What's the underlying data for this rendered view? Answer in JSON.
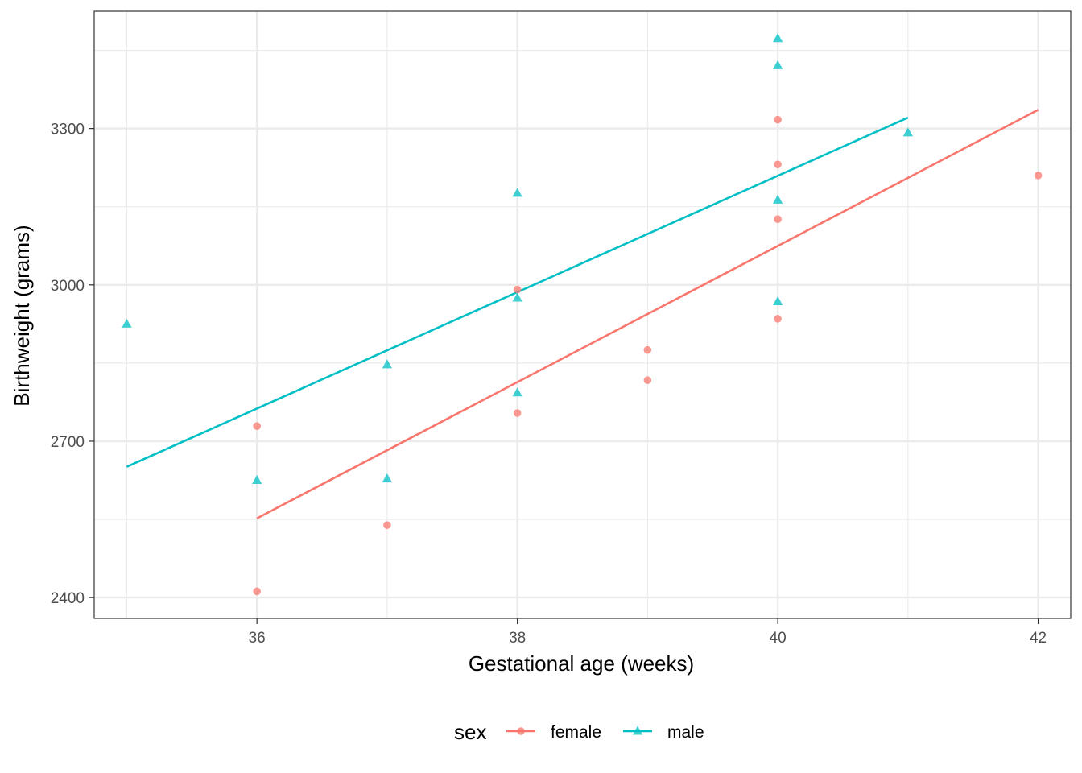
{
  "chart_data": {
    "type": "scatter",
    "xlabel": "Gestational age (weeks)",
    "ylabel": "Birthweight (grams)",
    "xlim": [
      34.75,
      42.25
    ],
    "ylim": [
      2360,
      3525
    ],
    "x_ticks": [
      36,
      38,
      40,
      42
    ],
    "y_ticks": [
      2400,
      2700,
      3000,
      3300
    ],
    "grid": true,
    "legend": {
      "title": "sex",
      "placement": "bottom",
      "entries": [
        "female",
        "male"
      ]
    },
    "series": [
      {
        "name": "female",
        "color": "#F8766D",
        "marker": "circle",
        "points": [
          {
            "x": 36,
            "y": 2729
          },
          {
            "x": 36,
            "y": 2412
          },
          {
            "x": 37,
            "y": 2539
          },
          {
            "x": 38,
            "y": 2991
          },
          {
            "x": 38,
            "y": 2754
          },
          {
            "x": 39,
            "y": 2875
          },
          {
            "x": 39,
            "y": 2817
          },
          {
            "x": 40,
            "y": 3317
          },
          {
            "x": 40,
            "y": 3231
          },
          {
            "x": 40,
            "y": 3126
          },
          {
            "x": 40,
            "y": 2935
          },
          {
            "x": 42,
            "y": 3210
          }
        ],
        "fit_line": {
          "x": [
            36,
            42
          ],
          "y": [
            2552,
            3336
          ]
        }
      },
      {
        "name": "male",
        "color": "#00BFC4",
        "marker": "triangle",
        "points": [
          {
            "x": 35,
            "y": 2925
          },
          {
            "x": 36,
            "y": 2625
          },
          {
            "x": 37,
            "y": 2847
          },
          {
            "x": 37,
            "y": 2628
          },
          {
            "x": 38,
            "y": 3176
          },
          {
            "x": 38,
            "y": 2975
          },
          {
            "x": 38,
            "y": 2793
          },
          {
            "x": 40,
            "y": 3473
          },
          {
            "x": 40,
            "y": 3421
          },
          {
            "x": 40,
            "y": 3163
          },
          {
            "x": 40,
            "y": 2968
          },
          {
            "x": 41,
            "y": 3292
          }
        ],
        "fit_line": {
          "x": [
            35,
            41
          ],
          "y": [
            2651,
            3321
          ]
        }
      }
    ]
  }
}
